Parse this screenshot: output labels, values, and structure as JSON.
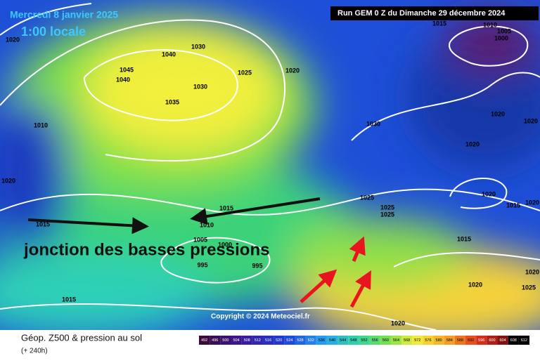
{
  "header": {
    "valid_date": "Mercredi 8 janvier 2025",
    "local_time": "1:00 locale",
    "run": "Run GEM 0 Z du Dimanche 29 décembre 2024"
  },
  "annotation": "jonction des basses pressions",
  "copyright": "Copyright © 2024 Meteociel.fr",
  "footer": {
    "title": "Géop. Z500 & pression au sol",
    "lead_time": "(+ 240h)"
  },
  "isobar_labels": [
    "1020",
    "1030",
    "1040",
    "1045",
    "1040",
    "1025",
    "1020",
    "1030",
    "1035",
    "1010",
    "1015",
    "1010",
    "1005",
    "1000",
    "1020",
    "1020",
    "1030",
    "1020",
    "1020",
    "1015",
    "1015",
    "1010",
    "1025",
    "1025",
    "1025",
    "1020",
    "1015",
    "1020",
    "1005",
    "1000",
    "995",
    "995",
    "1015",
    "1020",
    "1020",
    "1025",
    "1015",
    "1020"
  ],
  "color_scale": {
    "values": [
      492,
      496,
      500,
      504,
      508,
      512,
      516,
      520,
      524,
      528,
      532,
      536,
      540,
      544,
      548,
      552,
      556,
      560,
      564,
      568,
      572,
      576,
      580,
      584,
      588,
      592,
      596,
      600,
      604,
      608,
      612
    ]
  }
}
